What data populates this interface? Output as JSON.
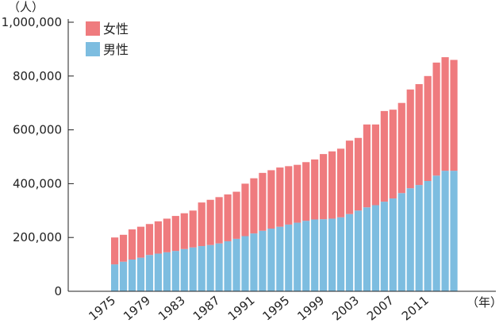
{
  "chart_data": {
    "type": "bar",
    "stacked": true,
    "title": "",
    "xlabel": "（年）",
    "ylabel": "（人）",
    "ylim": [
      0,
      1000000
    ],
    "yticks": [
      "0",
      "200,000",
      "400,000",
      "600,000",
      "800,000",
      "1,000,000"
    ],
    "ytick_values": [
      0,
      200000,
      400000,
      600000,
      800000,
      1000000
    ],
    "xtick_labels": [
      "1975",
      "1979",
      "1983",
      "1987",
      "1991",
      "1995",
      "1999",
      "2003",
      "2007",
      "2011"
    ],
    "x": [
      1975,
      1976,
      1977,
      1978,
      1979,
      1980,
      1981,
      1982,
      1983,
      1984,
      1985,
      1986,
      1987,
      1988,
      1989,
      1990,
      1991,
      1992,
      1993,
      1994,
      1995,
      1996,
      1997,
      1998,
      1999,
      2000,
      2001,
      2002,
      2003,
      2004,
      2005,
      2006,
      2007,
      2008,
      2009,
      2010,
      2011,
      2012,
      2013,
      2014
    ],
    "legend_position": "top-left",
    "grid": false,
    "series": [
      {
        "name": "男性",
        "color": "#7dbde0",
        "values": [
          100000,
          110000,
          118000,
          125000,
          135000,
          140000,
          145000,
          150000,
          157000,
          163000,
          168000,
          172000,
          178000,
          186000,
          195000,
          205000,
          215000,
          225000,
          233000,
          240000,
          248000,
          255000,
          262000,
          267000,
          268000,
          270000,
          275000,
          287000,
          300000,
          312000,
          320000,
          333000,
          345000,
          365000,
          383000,
          395000,
          410000,
          430000,
          448000,
          448000
        ]
      },
      {
        "name": "女性",
        "color": "#ef7b7e",
        "values": [
          100000,
          100000,
          112000,
          115000,
          115000,
          120000,
          125000,
          130000,
          133000,
          137000,
          162000,
          168000,
          172000,
          174000,
          175000,
          195000,
          205000,
          215000,
          217000,
          220000,
          217000,
          215000,
          218000,
          223000,
          242000,
          250000,
          255000,
          273000,
          270000,
          308000,
          300000,
          337000,
          330000,
          335000,
          367000,
          375000,
          390000,
          420000,
          422000,
          412000
        ]
      }
    ]
  }
}
